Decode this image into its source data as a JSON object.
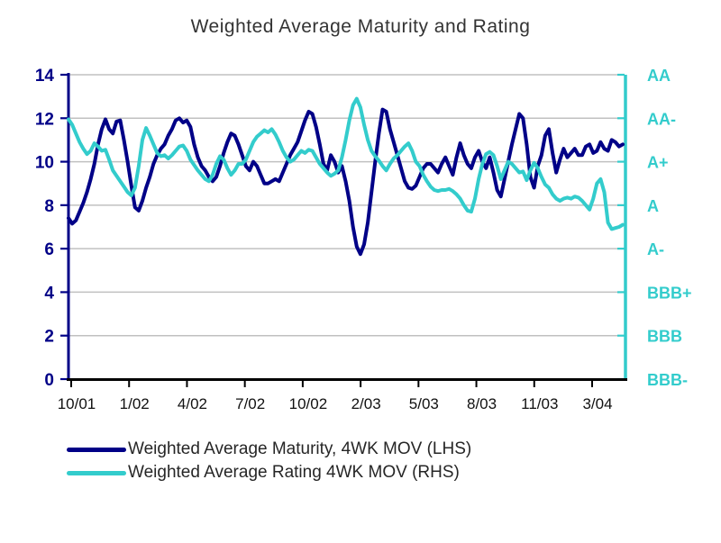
{
  "chart": {
    "title": "Weighted Average Maturity and Rating"
  },
  "chart_data": {
    "type": "line",
    "title": "Weighted Average Maturity and Rating",
    "x_tick_labels": [
      "10/01",
      "1/02",
      "4/02",
      "7/02",
      "10/02",
      "2/03",
      "5/03",
      "8/03",
      "11/03",
      "3/04"
    ],
    "left_axis": {
      "min": 0,
      "max": 14,
      "label_values": [
        14,
        12,
        10,
        8,
        6,
        4,
        2,
        0
      ],
      "color": "#000087"
    },
    "right_axis": {
      "labels": [
        "AA",
        "AA-",
        "A+",
        "A",
        "A-",
        "BBB+",
        "BBB",
        "BBB-"
      ],
      "aligned_to_left_values": [
        14,
        12,
        10,
        8,
        6,
        4,
        2,
        0
      ],
      "color": "#33cccc"
    },
    "grid": {
      "horizontal": true,
      "color": "#c0c0c0"
    },
    "axis_line_colors": {
      "left": "#000087",
      "right": "#33cccc",
      "bottom": "#000000"
    },
    "legend_position": "bottom-left",
    "series": [
      {
        "name": "Weighted Average Maturity, 4WK MOV (LHS)",
        "axis": "left",
        "color": "#000087",
        "values": [
          7.4,
          7.15,
          7.3,
          7.7,
          8.1,
          8.6,
          9.2,
          9.9,
          10.8,
          11.5,
          11.95,
          11.5,
          11.3,
          11.85,
          11.9,
          11.0,
          10.0,
          8.9,
          7.9,
          7.75,
          8.2,
          8.8,
          9.3,
          9.9,
          10.3,
          10.6,
          10.8,
          11.2,
          11.5,
          11.9,
          12.0,
          11.8,
          11.9,
          11.6,
          10.8,
          10.2,
          9.8,
          9.6,
          9.3,
          9.1,
          9.3,
          9.8,
          10.4,
          10.9,
          11.3,
          11.2,
          10.8,
          10.3,
          9.8,
          9.6,
          10.0,
          9.8,
          9.4,
          9.0,
          9.0,
          9.1,
          9.2,
          9.1,
          9.5,
          9.9,
          10.3,
          10.6,
          10.9,
          11.4,
          11.9,
          12.3,
          12.2,
          11.6,
          10.8,
          9.9,
          9.6,
          10.3,
          10.0,
          9.5,
          9.8,
          9.1,
          8.2,
          7.0,
          6.1,
          5.75,
          6.2,
          7.2,
          8.6,
          10.0,
          11.3,
          12.4,
          12.3,
          11.5,
          10.9,
          10.3,
          9.7,
          9.1,
          8.8,
          8.75,
          8.9,
          9.3,
          9.7,
          9.9,
          9.9,
          9.7,
          9.5,
          9.9,
          10.2,
          9.8,
          9.4,
          10.2,
          10.85,
          10.3,
          9.9,
          9.7,
          10.2,
          10.5,
          10.0,
          9.7,
          10.2,
          9.5,
          8.7,
          8.4,
          9.2,
          10.0,
          10.8,
          11.5,
          12.2,
          12.0,
          10.8,
          9.3,
          8.8,
          9.8,
          10.3,
          11.2,
          11.5,
          10.4,
          9.5,
          10.1,
          10.6,
          10.2,
          10.4,
          10.6,
          10.3,
          10.3,
          10.7,
          10.8,
          10.4,
          10.5,
          10.9,
          10.6,
          10.5,
          11.0,
          10.9,
          10.7,
          10.8
        ]
      },
      {
        "name": "Weighted Average Rating 4WK MOV (RHS)",
        "axis": "right",
        "color": "#33cccc",
        "values": [
          11.95,
          11.7,
          11.3,
          10.9,
          10.6,
          10.35,
          10.5,
          10.85,
          10.7,
          10.5,
          10.55,
          10.1,
          9.6,
          9.35,
          9.1,
          8.85,
          8.6,
          8.45,
          8.8,
          9.8,
          11.0,
          11.55,
          11.2,
          10.8,
          10.4,
          10.25,
          10.3,
          10.15,
          10.3,
          10.5,
          10.7,
          10.75,
          10.5,
          10.1,
          9.85,
          9.6,
          9.4,
          9.2,
          9.1,
          9.4,
          9.9,
          10.25,
          10.1,
          9.7,
          9.4,
          9.6,
          9.9,
          9.9,
          10.1,
          10.5,
          10.9,
          11.15,
          11.3,
          11.45,
          11.35,
          11.5,
          11.25,
          10.9,
          10.5,
          10.2,
          10.0,
          10.1,
          10.3,
          10.5,
          10.4,
          10.55,
          10.5,
          10.2,
          9.9,
          9.7,
          9.5,
          9.35,
          9.45,
          9.6,
          10.2,
          11.0,
          11.9,
          12.6,
          12.9,
          12.5,
          11.7,
          11.0,
          10.5,
          10.25,
          10.05,
          9.8,
          9.6,
          9.9,
          10.15,
          10.3,
          10.5,
          10.7,
          10.85,
          10.5,
          10.0,
          9.8,
          9.4,
          9.1,
          8.85,
          8.7,
          8.65,
          8.7,
          8.7,
          8.75,
          8.65,
          8.5,
          8.3,
          8.0,
          7.75,
          7.7,
          8.3,
          9.2,
          9.9,
          10.35,
          10.45,
          10.3,
          9.8,
          9.2,
          9.6,
          10.0,
          9.9,
          9.7,
          9.5,
          9.55,
          9.15,
          9.6,
          9.95,
          9.7,
          9.3,
          8.95,
          8.8,
          8.5,
          8.3,
          8.2,
          8.3,
          8.35,
          8.3,
          8.4,
          8.35,
          8.2,
          8.0,
          7.8,
          8.3,
          9.0,
          9.2,
          8.6,
          7.2,
          6.9,
          6.95,
          7.0,
          7.1
        ]
      }
    ]
  }
}
